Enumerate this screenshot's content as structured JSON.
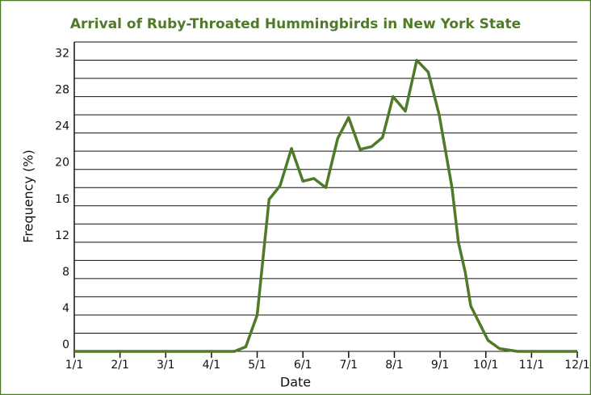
{
  "chart_data": {
    "type": "line",
    "title": "Arrival of Ruby-Throated Hummingbirds in New York State",
    "x_label": "Date",
    "y_label": "Frequency (%)",
    "xlim": [
      0,
      11
    ],
    "xticks": [
      {
        "value": 0,
        "label": "1/1"
      },
      {
        "value": 1,
        "label": "2/1"
      },
      {
        "value": 2,
        "label": "3/1"
      },
      {
        "value": 3,
        "label": "4/1"
      },
      {
        "value": 4,
        "label": "5/1"
      },
      {
        "value": 5,
        "label": "6/1"
      },
      {
        "value": 6,
        "label": "7/1"
      },
      {
        "value": 7,
        "label": "8/1"
      },
      {
        "value": 8,
        "label": "9/1"
      },
      {
        "value": 9,
        "label": "10/1"
      },
      {
        "value": 10,
        "label": "11/1"
      },
      {
        "value": 11,
        "label": "12/1"
      }
    ],
    "ylim": [
      0,
      34
    ],
    "yticks": [
      0,
      4,
      8,
      12,
      16,
      20,
      24,
      28,
      32
    ],
    "grid_lines": [
      0,
      2,
      4,
      6,
      8,
      10,
      12,
      14,
      16,
      18,
      20,
      22,
      24,
      26,
      28,
      30,
      32,
      34
    ],
    "grid": true,
    "series": [
      {
        "color": "#4f7a28",
        "x": [
          0,
          3.5,
          3.75,
          4.0,
          4.26,
          4.5,
          4.75,
          5.0,
          5.24,
          5.5,
          5.76,
          6.0,
          6.25,
          6.5,
          6.74,
          6.87,
          6.97,
          7.24,
          7.49,
          7.74,
          7.98,
          8.26,
          8.4,
          8.55,
          8.67,
          9.05,
          9.3,
          9.7,
          11
        ],
        "values": [
          0,
          0,
          0.5,
          4,
          16.7,
          18.2,
          22.3,
          18.7,
          19,
          18,
          23.4,
          25.7,
          22.2,
          22.5,
          23.5,
          26,
          28,
          26.4,
          32,
          30.7,
          26,
          18,
          12,
          8.7,
          5,
          1.2,
          0.3,
          0,
          0
        ]
      }
    ]
  }
}
